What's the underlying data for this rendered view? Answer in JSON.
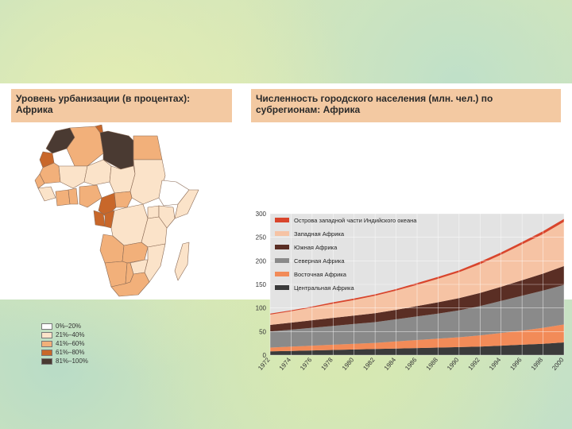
{
  "map": {
    "title": "Уровень урбанизации (в процентах): Африка",
    "legend": [
      {
        "label": "0%–20%",
        "color": "#ffffff"
      },
      {
        "label": "21%–40%",
        "color": "#fbe3c9"
      },
      {
        "label": "41%–60%",
        "color": "#f2b07a"
      },
      {
        "label": "61%–80%",
        "color": "#c8672a"
      },
      {
        "label": "81%–100%",
        "color": "#4a3a32"
      }
    ]
  },
  "chart_data": {
    "type": "area",
    "title": "Численность городского населения (млн. чел.) по субрегионам: Африка",
    "x": [
      1972,
      1974,
      1976,
      1978,
      1980,
      1982,
      1984,
      1986,
      1988,
      1990,
      1992,
      1994,
      1996,
      1998,
      2000
    ],
    "ylim": [
      0,
      300
    ],
    "yticks": [
      0,
      50,
      100,
      150,
      200,
      250,
      300
    ],
    "stacking": "stacked",
    "series": [
      {
        "name": "Центральная Африка",
        "color": "#3b3b3b",
        "values": [
          8,
          9,
          10,
          11,
          12,
          13,
          14,
          15,
          16,
          17,
          18,
          20,
          22,
          24,
          27
        ]
      },
      {
        "name": "Восточная Африка",
        "color": "#f28b58",
        "values": [
          8,
          9,
          10,
          11,
          12,
          13,
          15,
          17,
          19,
          21,
          24,
          27,
          30,
          34,
          38
        ]
      },
      {
        "name": "Северная Африка",
        "color": "#8a8a8a",
        "values": [
          34,
          36,
          38,
          40,
          42,
          44,
          47,
          50,
          53,
          57,
          62,
          68,
          74,
          79,
          84
        ]
      },
      {
        "name": "Южная Африка",
        "color": "#5a2e24",
        "values": [
          14,
          15,
          16,
          17,
          18,
          19,
          20,
          22,
          24,
          26,
          28,
          30,
          33,
          36,
          40
        ]
      },
      {
        "name": "Западная Африка",
        "color": "#f6c3a4",
        "values": [
          22,
          24,
          27,
          30,
          33,
          37,
          41,
          45,
          50,
          55,
          61,
          68,
          76,
          84,
          94
        ]
      },
      {
        "name": "Острова западной части Индийского океана",
        "color": "#d9452c",
        "values": [
          2,
          2,
          2,
          3,
          3,
          3,
          3,
          4,
          4,
          4,
          5,
          5,
          5,
          6,
          6
        ]
      }
    ]
  }
}
